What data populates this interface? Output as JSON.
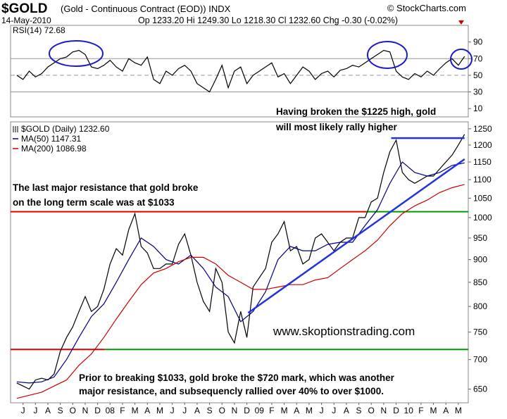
{
  "header": {
    "title": "$GOLD",
    "subtitle": "(Gold - Continuous Contract (EOD)) INDX",
    "source": "© StockCharts.com",
    "date": "14-May-2010",
    "quote": "Op 1233.20 Hi 1249.30 Lo 1218.30 Cl 1232.60 Chg -0.30 (-0.02%)"
  },
  "chart_data": [
    {
      "type": "line",
      "title": "RSI(14) 72.68",
      "xlim": [
        -0.5,
        36.3
      ],
      "ylim": [
        0,
        110
      ],
      "yticks": [
        10,
        30,
        50,
        70,
        90
      ],
      "hlines": [
        70,
        30
      ],
      "dashed_hlines": [
        50
      ],
      "series": [
        {
          "name": "RSI(14)",
          "color": "#000000",
          "x": [
            0,
            0.5,
            1,
            1.5,
            2,
            2.5,
            3,
            3.5,
            4,
            4.5,
            5,
            5.5,
            6,
            6.5,
            7,
            7.5,
            8,
            8.5,
            9,
            9.5,
            10,
            10.5,
            11,
            11.5,
            12,
            12.5,
            13,
            13.5,
            14,
            14.5,
            15,
            15.5,
            16,
            16.5,
            17,
            17.5,
            18,
            18.5,
            19,
            19.5,
            20,
            20.5,
            21,
            21.5,
            22,
            22.5,
            23,
            23.5,
            24,
            24.5,
            25,
            25.5,
            26,
            26.5,
            27,
            27.5,
            28,
            28.5,
            29,
            29.5,
            30,
            30.5,
            31,
            31.5,
            32,
            32.5,
            33,
            33.5,
            34,
            34.5,
            35,
            35.5,
            36
          ],
          "values": [
            50,
            45,
            55,
            48,
            52,
            60,
            65,
            70,
            72,
            78,
            80,
            75,
            60,
            58,
            62,
            68,
            60,
            55,
            70,
            65,
            62,
            72,
            45,
            40,
            55,
            50,
            58,
            62,
            55,
            40,
            35,
            30,
            45,
            62,
            35,
            55,
            60,
            40,
            50,
            55,
            60,
            65,
            48,
            52,
            40,
            50,
            60,
            55,
            45,
            52,
            55,
            48,
            56,
            58,
            62,
            60,
            65,
            70,
            75,
            80,
            78,
            55,
            48,
            45,
            52,
            48,
            55,
            50,
            58,
            65,
            70,
            62,
            72.68
          ]
        }
      ]
    },
    {
      "type": "line",
      "log": true,
      "legend": "upper left",
      "xlim": [
        -0.5,
        36.3
      ],
      "ylim": [
        628,
        1272
      ],
      "yticks": [
        650,
        700,
        750,
        800,
        850,
        900,
        950,
        1000,
        1050,
        1100,
        1150,
        1200,
        1250
      ],
      "xticks": [
        {
          "value": 0.5,
          "label": "J"
        },
        {
          "value": 1.5,
          "label": "J"
        },
        {
          "value": 2.5,
          "label": "A"
        },
        {
          "value": 3.5,
          "label": "S"
        },
        {
          "value": 4.5,
          "label": "O"
        },
        {
          "value": 5.5,
          "label": "N"
        },
        {
          "value": 6.5,
          "label": "D"
        },
        {
          "value": 7.5,
          "label": "08"
        },
        {
          "value": 8.5,
          "label": "F"
        },
        {
          "value": 9.5,
          "label": "M"
        },
        {
          "value": 10.5,
          "label": "A"
        },
        {
          "value": 11.5,
          "label": "M"
        },
        {
          "value": 12.5,
          "label": "J"
        },
        {
          "value": 13.5,
          "label": "J"
        },
        {
          "value": 14.5,
          "label": "A"
        },
        {
          "value": 15.5,
          "label": "S"
        },
        {
          "value": 16.5,
          "label": "O"
        },
        {
          "value": 17.5,
          "label": "N"
        },
        {
          "value": 18.5,
          "label": "D"
        },
        {
          "value": 19.5,
          "label": "09"
        },
        {
          "value": 20.5,
          "label": "F"
        },
        {
          "value": 21.5,
          "label": "M"
        },
        {
          "value": 22.5,
          "label": "A"
        },
        {
          "value": 23.5,
          "label": "M"
        },
        {
          "value": 24.5,
          "label": "J"
        },
        {
          "value": 25.5,
          "label": "J"
        },
        {
          "value": 26.5,
          "label": "A"
        },
        {
          "value": 27.5,
          "label": "S"
        },
        {
          "value": 28.5,
          "label": "O"
        },
        {
          "value": 29.5,
          "label": "N"
        },
        {
          "value": 30.5,
          "label": "D"
        },
        {
          "value": 31.5,
          "label": "10"
        },
        {
          "value": 32.5,
          "label": "F"
        },
        {
          "value": 33.5,
          "label": "M"
        },
        {
          "value": 34.5,
          "label": "A"
        },
        {
          "value": 35.5,
          "label": "M"
        }
      ],
      "series": [
        {
          "name": "$GOLD (Daily) 1232.60",
          "color": "#000000",
          "x": [
            0,
            0.5,
            1,
            1.5,
            2,
            2.5,
            3,
            3.5,
            4,
            4.5,
            5,
            5.5,
            6,
            6.5,
            7,
            7.5,
            8,
            8.5,
            9,
            9.5,
            10,
            10.5,
            11,
            11.5,
            12,
            12.5,
            13,
            13.5,
            14,
            14.5,
            15,
            15.5,
            16,
            16.5,
            17,
            17.5,
            18,
            18.5,
            19,
            19.5,
            20,
            20.5,
            21,
            21.5,
            22,
            22.5,
            23,
            23.5,
            24,
            24.5,
            25,
            25.5,
            26,
            26.5,
            27,
            27.5,
            28,
            28.5,
            29,
            29.5,
            30,
            30.5,
            31,
            31.5,
            32,
            32.5,
            33,
            33.5,
            34,
            34.5,
            35,
            35.5,
            36
          ],
          "values": [
            660,
            655,
            650,
            665,
            668,
            665,
            675,
            715,
            740,
            760,
            790,
            820,
            790,
            800,
            835,
            890,
            925,
            910,
            970,
            1010,
            930,
            915,
            880,
            880,
            890,
            890,
            935,
            960,
            910,
            850,
            810,
            790,
            880,
            850,
            750,
            730,
            790,
            740,
            840,
            860,
            880,
            940,
            960,
            990,
            920,
            930,
            890,
            900,
            950,
            960,
            940,
            920,
            940,
            950,
            950,
            1000,
            1000,
            1040,
            1050,
            1120,
            1180,
            1215,
            1120,
            1100,
            1090,
            1100,
            1110,
            1110,
            1130,
            1150,
            1170,
            1200,
            1232.6
          ]
        },
        {
          "name": "MA(50) 1147.31",
          "color": "#000080",
          "x": [
            0,
            1,
            2,
            3,
            4,
            5,
            6,
            7,
            8,
            9,
            10,
            11,
            12,
            13,
            14,
            15,
            16,
            17,
            18,
            19,
            20,
            21,
            22,
            23,
            24,
            25,
            26,
            27,
            28,
            29,
            30,
            31,
            32,
            33,
            34,
            35,
            36
          ],
          "values": [
            662,
            660,
            662,
            670,
            700,
            740,
            780,
            805,
            850,
            900,
            950,
            930,
            900,
            890,
            910,
            880,
            840,
            820,
            770,
            790,
            830,
            900,
            930,
            920,
            920,
            935,
            940,
            940,
            980,
            1020,
            1090,
            1150,
            1120,
            1110,
            1120,
            1140,
            1147.31
          ]
        },
        {
          "name": "MA(200) 1086.98",
          "color": "#cc0000",
          "x": [
            0,
            1,
            2,
            3,
            4,
            5,
            6,
            7,
            8,
            9,
            10,
            11,
            12,
            13,
            14,
            15,
            16,
            17,
            18,
            19,
            20,
            21,
            22,
            23,
            24,
            25,
            26,
            27,
            28,
            29,
            30,
            31,
            32,
            33,
            34,
            35,
            36
          ],
          "values": [
            635,
            640,
            645,
            655,
            665,
            690,
            710,
            740,
            775,
            810,
            845,
            870,
            880,
            895,
            905,
            905,
            890,
            865,
            850,
            835,
            835,
            840,
            845,
            845,
            855,
            860,
            880,
            900,
            920,
            945,
            980,
            1010,
            1030,
            1045,
            1065,
            1078,
            1086.98
          ]
        }
      ],
      "reference_lines": [
        {
          "value": 1015,
          "segments": [
            {
              "x": [
                -0.5,
                28.1
              ],
              "color": "#dd0000"
            },
            {
              "x": [
                28.1,
                36.3
              ],
              "color": "#009900"
            }
          ]
        },
        {
          "value": 718,
          "segments": [
            {
              "x": [
                -0.5,
                7.1
              ],
              "color": "#dd0000"
            },
            {
              "x": [
                7.1,
                36.3
              ],
              "color": "#009900"
            }
          ]
        }
      ],
      "trendlines": [
        {
          "color": "#2233dd",
          "x": [
            18.6,
            36.0
          ],
          "values": [
            787,
            1158
          ]
        },
        {
          "color": "#2233dd",
          "x": [
            30.1,
            36.0
          ],
          "values": [
            1221,
            1221
          ]
        }
      ],
      "annotations": [
        {
          "lines": [
            "Having broken the $1225 high, gold",
            "will most likely rally higher"
          ]
        },
        {
          "lines": [
            "The last major resistance that gold broke",
            "on the long term scale was at $1033"
          ]
        },
        {
          "lines": [
            "www.skoptionstrading.com"
          ]
        },
        {
          "lines": [
            "Prior to breaking $1033, gold broke the $720 mark, which was another",
            "major resistance, and subsequencly rallied over 40% to over $1000."
          ]
        }
      ]
    }
  ]
}
